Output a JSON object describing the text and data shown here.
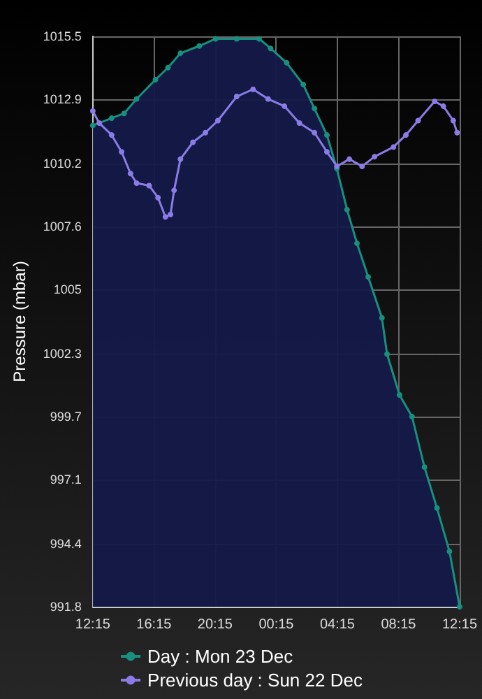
{
  "chart_data": {
    "type": "line",
    "ylabel": "Pressure (mbar)",
    "series": [
      {
        "name": "Day : Mon 23 Dec",
        "type": "area",
        "color": "#17907f",
        "x": [
          "--12-22T12:15",
          "--12-22T13:29",
          "--12-22T14:18",
          "--12-22T15:07",
          "--12-22T16:21",
          "--12-22T17:10",
          "--12-22T17:59",
          "--12-22T19:13",
          "--12-22T20:17",
          "--12-22T21:40",
          "--12-22T23:08",
          "--12-22T23:53",
          "--12-23T00:56",
          "--12-23T02:01",
          "--12-23T02:45",
          "--12-23T03:34",
          "--12-23T04:13",
          "--12-23T04:53",
          "--12-23T05:32",
          "--12-23T06:16",
          "--12-23T07:10",
          "--12-23T07:30",
          "--12-23T08:19",
          "--12-23T09:08",
          "--12-23T09:57",
          "--12-23T10:46",
          "--12-23T11:35",
          "--12-23T12:15"
        ],
        "values": [
          1011.8,
          1012.1,
          1012.3,
          1012.9,
          1013.7,
          1014.2,
          1014.8,
          1015.1,
          1015.4,
          1015.4,
          1015.4,
          1015.0,
          1014.4,
          1013.5,
          1012.5,
          1011.4,
          1010.0,
          1008.3,
          1006.9,
          1005.5,
          1003.8,
          1002.3,
          1000.6,
          999.7,
          997.6,
          995.9,
          994.1,
          991.8
        ]
      },
      {
        "name": "Previous day : Sun 22 Dec",
        "color": "#8a7be6",
        "x": [
          "--12-22T12:15",
          "--12-22T12:40",
          "--12-22T13:29",
          "--12-22T14:08",
          "--12-22T14:43",
          "--12-22T15:07",
          "--12-22T15:56",
          "--12-22T16:31",
          "--12-22T17:00",
          "--12-22T17:20",
          "--12-22T17:34",
          "--12-22T17:59",
          "--12-22T18:48",
          "--12-22T19:37",
          "--12-22T20:26",
          "--12-22T21:40",
          "--12-22T22:44",
          "--12-22T23:43",
          "--12-23T00:47",
          "--12-23T01:46",
          "--12-23T02:45",
          "--12-23T03:34",
          "--12-23T04:13",
          "--12-23T05:02",
          "--12-23T05:52",
          "--12-23T06:41",
          "--12-23T07:55",
          "--12-23T08:44",
          "--12-23T09:32",
          "--12-23T10:37",
          "--12-23T11:11",
          "--12-23T11:50",
          "--12-23T12:05"
        ],
        "values": [
          1012.4,
          1011.9,
          1011.4,
          1010.7,
          1009.8,
          1009.4,
          1009.3,
          1008.8,
          1008.0,
          1008.1,
          1009.1,
          1010.4,
          1011.1,
          1011.5,
          1012.0,
          1013.0,
          1013.3,
          1012.9,
          1012.6,
          1011.9,
          1011.5,
          1010.7,
          1010.1,
          1010.4,
          1010.1,
          1010.5,
          1010.9,
          1011.4,
          1012.0,
          1012.8,
          1012.6,
          1012.0,
          1011.5
        ]
      }
    ],
    "xlim": [
      "--12-22T12:15",
      "--12-23T12:15"
    ],
    "xticks": [
      {
        "value": "--12-22T12:15",
        "label": "12:15"
      },
      {
        "value": "--12-22T16:15",
        "label": "16:15"
      },
      {
        "value": "--12-22T20:15",
        "label": "20:15"
      },
      {
        "value": "--12-23T00:15",
        "label": "00:15"
      },
      {
        "value": "--12-23T04:15",
        "label": "04:15"
      },
      {
        "value": "--12-23T08:15",
        "label": "08:15"
      },
      {
        "value": "--12-23T12:15",
        "label": "12:15"
      }
    ],
    "ylim": [
      991.8,
      1015.5
    ],
    "yticks": [
      991.8,
      994.4,
      997.1,
      999.7,
      1002.3,
      1005.0,
      1007.6,
      1010.2,
      1012.9,
      1015.5
    ],
    "grid": true,
    "legend": "bottom",
    "marker": "circle",
    "line_style": "solid"
  }
}
